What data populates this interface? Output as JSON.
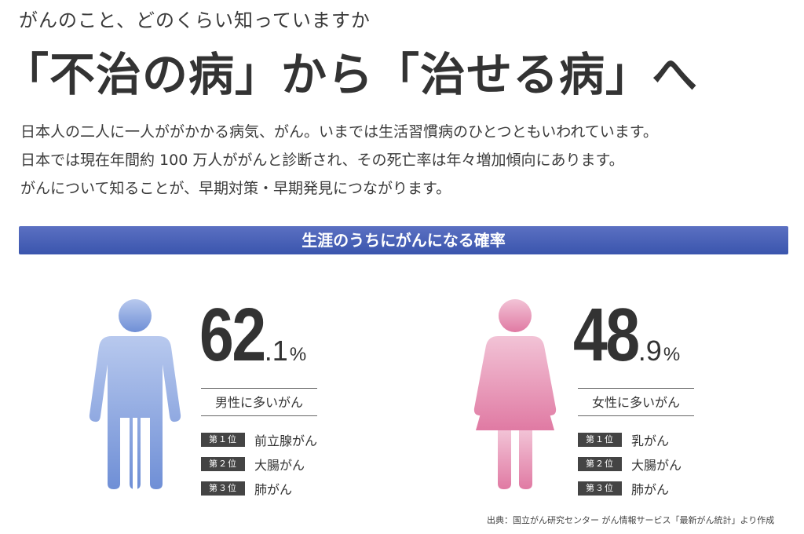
{
  "header": {
    "kicker": "がんのこと、どのくらい知っていますか",
    "headline": "「不治の病」から「治せる病」へ"
  },
  "intro": [
    "日本人の二人に一人ががかかる病気、がん。いまでは生活習慣病のひとつともいわれています。",
    "日本では現在年間約 100 万人ががんと診断され、その死亡率は年々増加傾向にあります。",
    "がんについて知ることが、早期対策・早期発見につながります。"
  ],
  "banner": "生涯のうちにがんになる確率",
  "male": {
    "value": 62.1,
    "int": "62",
    "dec": ".1",
    "unit": "%",
    "figure_color": "#7f9fdb",
    "heading": "男性に多いがん",
    "ranks": [
      {
        "badge": "第１位",
        "name": "前立腺がん"
      },
      {
        "badge": "第２位",
        "name": "大腸がん"
      },
      {
        "badge": "第３位",
        "name": "肺がん"
      }
    ]
  },
  "female": {
    "value": 48.9,
    "int": "48",
    "dec": ".9",
    "unit": "%",
    "figure_color": "#e68db0",
    "heading": "女性に多いがん",
    "ranks": [
      {
        "badge": "第１位",
        "name": "乳がん"
      },
      {
        "badge": "第２位",
        "name": "大腸がん"
      },
      {
        "badge": "第３位",
        "name": "肺がん"
      }
    ]
  },
  "source": "出典：国立がん研究センター がん情報サービス「最新がん統計」より作成",
  "colors": {
    "banner": "#4a61b5",
    "rank_badge": "#444444",
    "text": "#333333"
  }
}
